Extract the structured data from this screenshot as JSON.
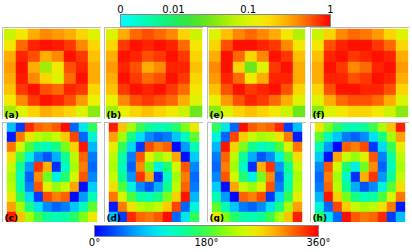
{
  "chart_data": [
    {
      "type": "heatmap",
      "color_range": [
        0,
        1
      ],
      "color_ticks": [
        0,
        0.01,
        0.1,
        1
      ],
      "panels": [
        {
          "title": "(a)",
          "cells": [
            [
              0.08,
              0.15,
              0.3,
              0.4,
              0.35,
              0.3,
              0.2,
              0.1
            ],
            [
              0.15,
              0.5,
              0.8,
              0.9,
              0.85,
              0.7,
              0.4,
              0.2
            ],
            [
              0.3,
              0.8,
              0.6,
              0.3,
              0.4,
              0.9,
              0.7,
              0.25
            ],
            [
              0.35,
              0.9,
              0.3,
              0.05,
              0.15,
              0.6,
              0.8,
              0.3
            ],
            [
              0.3,
              0.85,
              0.4,
              0.2,
              0.1,
              0.5,
              0.9,
              0.3
            ],
            [
              0.25,
              0.7,
              0.9,
              0.6,
              0.5,
              0.8,
              0.7,
              0.2
            ],
            [
              0.15,
              0.4,
              0.7,
              0.9,
              0.8,
              0.6,
              0.35,
              0.12
            ],
            [
              0.05,
              0.1,
              0.2,
              0.3,
              0.25,
              0.2,
              0.1,
              0.04
            ]
          ]
        },
        {
          "title": "(b)",
          "cells": [
            [
              0.1,
              0.3,
              0.5,
              0.6,
              0.5,
              0.4,
              0.2,
              0.08
            ],
            [
              0.2,
              0.7,
              0.9,
              0.8,
              0.9,
              0.8,
              0.5,
              0.15
            ],
            [
              0.3,
              0.9,
              0.8,
              0.6,
              0.7,
              0.9,
              0.7,
              0.2
            ],
            [
              0.35,
              0.8,
              0.6,
              0.3,
              0.4,
              0.8,
              0.8,
              0.25
            ],
            [
              0.3,
              0.9,
              0.7,
              0.5,
              0.6,
              0.9,
              0.7,
              0.2
            ],
            [
              0.25,
              0.7,
              0.9,
              0.8,
              0.9,
              0.7,
              0.5,
              0.15
            ],
            [
              0.12,
              0.4,
              0.6,
              0.7,
              0.6,
              0.5,
              0.3,
              0.1
            ],
            [
              0.05,
              0.12,
              0.2,
              0.25,
              0.2,
              0.15,
              0.08,
              0.03
            ]
          ]
        },
        {
          "title": "(e)",
          "cells": [
            [
              0.1,
              0.25,
              0.4,
              0.5,
              0.4,
              0.3,
              0.15,
              0.06
            ],
            [
              0.2,
              0.6,
              0.9,
              0.9,
              0.8,
              0.7,
              0.4,
              0.15
            ],
            [
              0.3,
              0.9,
              0.5,
              0.2,
              0.4,
              0.9,
              0.7,
              0.25
            ],
            [
              0.4,
              0.9,
              0.2,
              0.03,
              0.1,
              0.7,
              0.9,
              0.3
            ],
            [
              0.35,
              0.8,
              0.5,
              0.15,
              0.3,
              0.8,
              0.8,
              0.3
            ],
            [
              0.25,
              0.6,
              0.9,
              0.7,
              0.8,
              0.9,
              0.6,
              0.2
            ],
            [
              0.12,
              0.35,
              0.6,
              0.8,
              0.7,
              0.5,
              0.3,
              0.1
            ],
            [
              0.04,
              0.1,
              0.2,
              0.25,
              0.2,
              0.15,
              0.08,
              0.03
            ]
          ]
        },
        {
          "title": "(f)",
          "cells": [
            [
              0.08,
              0.2,
              0.4,
              0.5,
              0.45,
              0.35,
              0.2,
              0.1
            ],
            [
              0.15,
              0.6,
              0.8,
              0.9,
              0.9,
              0.7,
              0.5,
              0.2
            ],
            [
              0.25,
              0.8,
              0.9,
              0.7,
              0.8,
              0.9,
              0.8,
              0.3
            ],
            [
              0.3,
              0.9,
              0.7,
              0.4,
              0.5,
              0.8,
              0.9,
              0.35
            ],
            [
              0.3,
              0.8,
              0.8,
              0.6,
              0.7,
              0.9,
              0.8,
              0.3
            ],
            [
              0.2,
              0.6,
              0.9,
              0.9,
              0.8,
              0.8,
              0.6,
              0.2
            ],
            [
              0.1,
              0.3,
              0.5,
              0.6,
              0.6,
              0.5,
              0.3,
              0.1
            ],
            [
              0.04,
              0.1,
              0.15,
              0.2,
              0.2,
              0.15,
              0.08,
              0.04
            ]
          ]
        }
      ]
    },
    {
      "type": "heatmap",
      "color_range": [
        0,
        360
      ],
      "color_ticks": [
        {
          "value": 0,
          "label": "0°"
        },
        {
          "value": 180,
          "label": "180°"
        },
        {
          "value": 360,
          "label": "360°"
        }
      ],
      "panels": [
        {
          "title": "(c)",
          "cells": [
            [
              78,
              25,
              344,
              319,
              312,
              324,
              355,
              42,
              101,
              168
            ],
            [
              11,
              311,
              262,
              230,
              220,
              236,
              276,
              333,
              41,
              115
            ],
            [
              312,
              243,
              183,
              141,
              129,
              151,
              203,
              273,
              352,
              74
            ],
            [
              265,
              186,
              113,
              56,
              34,
              70,
              146,
              231,
              320,
              49
            ],
            [
              234,
              146,
              61,
              340,
              289,
              19,
              124,
              219,
              310,
              42
            ],
            [
              222,
              130,
              39,
              304,
              199,
              109,
              160,
              241,
              326,
              54
            ],
            [
              229,
              140,
              51,
              326,
              250,
              214,
              236,
              293,
              6,
              85
            ],
            [
              254,
              172,
              93,
              23,
              331,
              309,
              321,
              3,
              63,
              132
            ],
            [
              295,
              221,
              153,
              96,
              56,
              40,
              50,
              82,
              131,
              191
            ],
            [
              348,
              281,
              222,
              175,
              144,
              132,
              139,
              164,
              205,
              258
            ]
          ]
        },
        {
          "title": "(d)",
          "cells": [
            [
              348,
              281,
              222,
              175,
              144,
              132,
              139,
              164,
              205,
              258
            ],
            [
              295,
              221,
              153,
              96,
              56,
              40,
              50,
              82,
              131,
              191
            ],
            [
              254,
              172,
              93,
              23,
              331,
              309,
              321,
              3,
              63,
              132
            ],
            [
              229,
              140,
              51,
              326,
              250,
              214,
              236,
              293,
              6,
              85
            ],
            [
              222,
              130,
              39,
              304,
              199,
              109,
              160,
              241,
              326,
              54
            ],
            [
              234,
              146,
              61,
              340,
              289,
              19,
              124,
              219,
              310,
              42
            ],
            [
              265,
              186,
              113,
              56,
              34,
              70,
              146,
              231,
              320,
              49
            ],
            [
              312,
              243,
              183,
              141,
              129,
              151,
              203,
              273,
              352,
              74
            ],
            [
              11,
              311,
              262,
              230,
              220,
              236,
              276,
              333,
              41,
              115
            ],
            [
              78,
              25,
              344,
              319,
              312,
              324,
              355,
              42,
              101,
              168
            ]
          ]
        },
        {
          "title": "(g)",
          "cells": [
            [
              168,
              101,
              42,
              355,
              324,
              312,
              319,
              344,
              25,
              78
            ],
            [
              115,
              41,
              333,
              276,
              236,
              220,
              230,
              262,
              311,
              11
            ],
            [
              74,
              352,
              273,
              203,
              151,
              129,
              141,
              183,
              243,
              312
            ],
            [
              49,
              320,
              231,
              146,
              70,
              34,
              56,
              113,
              186,
              265
            ],
            [
              42,
              310,
              219,
              124,
              19,
              289,
              340,
              61,
              146,
              234
            ],
            [
              54,
              326,
              241,
              160,
              109,
              199,
              304,
              39,
              130,
              222
            ],
            [
              85,
              6,
              293,
              236,
              214,
              250,
              326,
              51,
              140,
              229
            ],
            [
              132,
              63,
              3,
              321,
              309,
              331,
              23,
              93,
              172,
              254
            ],
            [
              191,
              131,
              82,
              50,
              40,
              56,
              96,
              153,
              221,
              295
            ],
            [
              258,
              205,
              164,
              139,
              132,
              144,
              175,
              222,
              281,
              348
            ]
          ]
        },
        {
          "title": "(h)",
          "cells": [
            [
              258,
              205,
              164,
              139,
              132,
              144,
              175,
              222,
              281,
              348
            ],
            [
              191,
              131,
              82,
              50,
              40,
              56,
              96,
              153,
              221,
              295
            ],
            [
              132,
              63,
              3,
              321,
              309,
              331,
              23,
              93,
              172,
              254
            ],
            [
              85,
              6,
              293,
              236,
              214,
              250,
              326,
              51,
              140,
              229
            ],
            [
              54,
              326,
              241,
              160,
              109,
              199,
              304,
              39,
              130,
              222
            ],
            [
              42,
              310,
              219,
              124,
              19,
              289,
              340,
              61,
              146,
              234
            ],
            [
              49,
              320,
              231,
              146,
              70,
              34,
              56,
              113,
              186,
              265
            ],
            [
              74,
              352,
              273,
              203,
              151,
              129,
              141,
              183,
              243,
              312
            ],
            [
              115,
              41,
              333,
              276,
              236,
              220,
              230,
              262,
              311,
              11
            ],
            [
              168,
              101,
              42,
              355,
              324,
              312,
              319,
              344,
              25,
              78
            ]
          ]
        }
      ]
    }
  ]
}
